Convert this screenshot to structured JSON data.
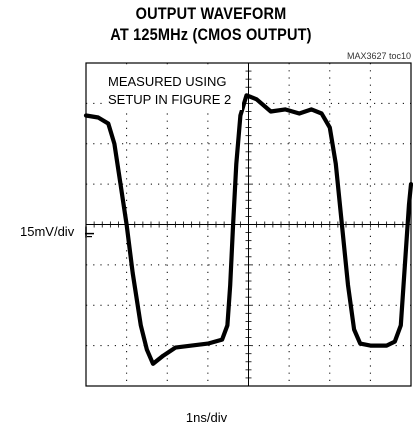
{
  "title_line1": "OUTPUT WAVEFORM",
  "title_line2": "AT 125MHz (CMOS OUTPUT)",
  "figure_code": "MAX3627 toc10",
  "annotation_line1": "MEASURED USING",
  "annotation_line2": "SETUP IN FIGURE 2",
  "y_scale_label": "15mV/div",
  "x_scale_label": "1ns/div",
  "chart_data": {
    "type": "line",
    "title": "OUTPUT WAVEFORM AT 125MHz (CMOS OUTPUT)",
    "xlabel": "1ns/div",
    "ylabel": "15mV/div",
    "x_divisions": 8,
    "y_divisions": 8,
    "grid": true,
    "x_unit": "div",
    "y_unit": "div",
    "xlim": [
      0,
      8
    ],
    "ylim": [
      -4,
      4
    ],
    "series": [
      {
        "points": [
          [
            0.0,
            2.7
          ],
          [
            0.3,
            2.65
          ],
          [
            0.55,
            2.5
          ],
          [
            0.7,
            2.0
          ],
          [
            0.85,
            1.0
          ],
          [
            1.0,
            0.0
          ],
          [
            1.15,
            -1.2
          ],
          [
            1.35,
            -2.5
          ],
          [
            1.5,
            -3.1
          ],
          [
            1.65,
            -3.45
          ],
          [
            1.9,
            -3.25
          ],
          [
            2.2,
            -3.05
          ],
          [
            2.6,
            -3.0
          ],
          [
            3.0,
            -2.95
          ],
          [
            3.35,
            -2.85
          ],
          [
            3.48,
            -2.5
          ],
          [
            3.55,
            -1.5
          ],
          [
            3.62,
            0.0
          ],
          [
            3.7,
            1.5
          ],
          [
            3.8,
            2.7
          ],
          [
            3.95,
            3.2
          ],
          [
            4.2,
            3.1
          ],
          [
            4.55,
            2.8
          ],
          [
            4.9,
            2.85
          ],
          [
            5.25,
            2.75
          ],
          [
            5.55,
            2.85
          ],
          [
            5.8,
            2.75
          ],
          [
            6.0,
            2.4
          ],
          [
            6.15,
            1.5
          ],
          [
            6.3,
            0.0
          ],
          [
            6.45,
            -1.5
          ],
          [
            6.6,
            -2.6
          ],
          [
            6.75,
            -2.95
          ],
          [
            7.0,
            -3.0
          ],
          [
            7.4,
            -3.0
          ],
          [
            7.6,
            -2.9
          ],
          [
            7.75,
            -2.5
          ],
          [
            7.85,
            -1.0
          ],
          [
            7.95,
            0.5
          ],
          [
            8.0,
            1.0
          ]
        ]
      }
    ],
    "ground_marker_level": -0.25
  }
}
